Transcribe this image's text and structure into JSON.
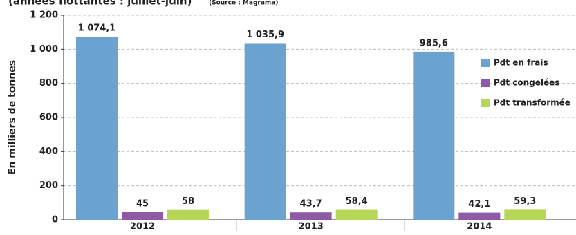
{
  "chart_data": {
    "type": "bar",
    "title": "(années flottantes : juillet-juin)",
    "source": "(Source : Magrama)",
    "y_label": "En milliers de tonnes",
    "categories": [
      "2012",
      "2013",
      "2014"
    ],
    "series": [
      {
        "name": "Pdt en frais",
        "color": "#6aa3d0",
        "values": [
          1074.1,
          1035.9,
          985.6
        ],
        "value_labels": [
          "1 074,1",
          "1 035,9",
          "985,6"
        ]
      },
      {
        "name": "Pdt congelées",
        "color": "#8e5aa6",
        "values": [
          45,
          43.7,
          42.1
        ],
        "value_labels": [
          "45",
          "43,7",
          "42,1"
        ]
      },
      {
        "name": "Pdt transformée",
        "color": "#b5d657",
        "values": [
          58,
          58.4,
          59.3
        ],
        "value_labels": [
          "58",
          "58,4",
          "59,3"
        ]
      }
    ],
    "ylim": [
      0,
      1200
    ],
    "yticks": [
      0,
      200,
      400,
      600,
      800,
      {
        "value": 1000,
        "label": "1 000"
      },
      {
        "value": 1200,
        "label": "1 200"
      }
    ],
    "grid": true,
    "legend_position": "right"
  }
}
